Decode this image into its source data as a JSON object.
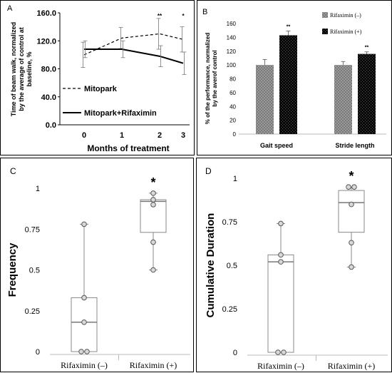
{
  "figure": {
    "panel_letters": [
      "A",
      "B",
      "C",
      "D"
    ]
  },
  "chart_data": [
    {
      "panel": "A",
      "type": "line",
      "xlabel": "Months of treatment",
      "ylabel": "Time of beam walk, normalized by the average of control at baseline, %",
      "ylabel_lines": [
        "Time of beam walk, normalized",
        "by the average of control at",
        "baseline, %"
      ],
      "x": [
        0,
        1,
        2,
        3
      ],
      "x_tick_labels": [
        "0",
        "1",
        "2",
        "3"
      ],
      "y_tick_labels": [
        "0.0",
        "40.0",
        "80.0",
        "120.0",
        "160.0"
      ],
      "ylim": [
        0,
        160
      ],
      "grid": false,
      "series": [
        {
          "name": "Mitopark",
          "style": "dashed",
          "color": "#000000",
          "values": [
            100,
            124,
            130,
            122
          ],
          "errors": [
            18,
            15,
            22,
            18
          ]
        },
        {
          "name": "Mitopark+Rifaximin",
          "style": "solid",
          "color": "#000000",
          "values": [
            108,
            108,
            98,
            88
          ],
          "errors": [
            12,
            12,
            15,
            16
          ]
        }
      ],
      "annotations": [
        {
          "x": 2,
          "text": "**"
        },
        {
          "x": 3,
          "text": "*"
        }
      ]
    },
    {
      "panel": "B",
      "type": "bar",
      "ylabel": "% of the performance, normalized by the averof control",
      "ylabel_lines": [
        "% of the performance, normalized",
        "by the averof control"
      ],
      "categories": [
        "Gait speed",
        "Stride length"
      ],
      "y_tick_labels": [
        "0",
        "20",
        "40",
        "60",
        "80",
        "100",
        "120",
        "140",
        "160"
      ],
      "ylim": [
        0,
        160
      ],
      "legend_position": "top-right",
      "series": [
        {
          "name": "Rifaximin (–)",
          "color": "#8c8c8c",
          "values": [
            100,
            100
          ],
          "errors": [
            8,
            5
          ]
        },
        {
          "name": "Rifaximin (+)",
          "color": "#111111",
          "values": [
            143,
            116
          ],
          "errors": [
            6,
            3
          ]
        }
      ],
      "annotations": [
        {
          "category": "Gait speed",
          "text": "**"
        },
        {
          "category": "Stride length",
          "text": "**"
        }
      ]
    },
    {
      "panel": "C",
      "type": "box",
      "ylabel": "Frequency",
      "categories": [
        "Rifaximin (–)",
        "Rifaximin (+)"
      ],
      "y_tick_labels": [
        "0",
        "0.25",
        "0.5",
        "0.75",
        "1"
      ],
      "ylim": [
        0,
        1
      ],
      "boxes": [
        {
          "min": 0,
          "q1": 0,
          "median": 0.18,
          "q3": 0.33,
          "max": 0.78,
          "points": [
            0,
            0,
            0.18,
            0.33,
            0.78
          ]
        },
        {
          "min": 0.5,
          "q1": 0.73,
          "median": 0.92,
          "q3": 0.93,
          "max": 0.97,
          "points": [
            0.5,
            0.67,
            0.9,
            0.93,
            0.97
          ]
        }
      ],
      "significance": "*"
    },
    {
      "panel": "D",
      "type": "box",
      "ylabel": "Cumulative Duration",
      "categories": [
        "Rifaximin (–)",
        "Rifaximin (+)"
      ],
      "y_tick_labels": [
        "0",
        "0.25",
        "0.5",
        "0.75",
        "1"
      ],
      "ylim": [
        0,
        1
      ],
      "boxes": [
        {
          "min": 0,
          "q1": 0,
          "median": 0.52,
          "q3": 0.56,
          "max": 0.74,
          "points": [
            0,
            0,
            0.52,
            0.56,
            0.74
          ]
        },
        {
          "min": 0.49,
          "q1": 0.69,
          "median": 0.86,
          "q3": 0.93,
          "max": 0.95,
          "points": [
            0.49,
            0.63,
            0.85,
            0.95,
            0.95
          ]
        }
      ],
      "significance": "*"
    }
  ]
}
